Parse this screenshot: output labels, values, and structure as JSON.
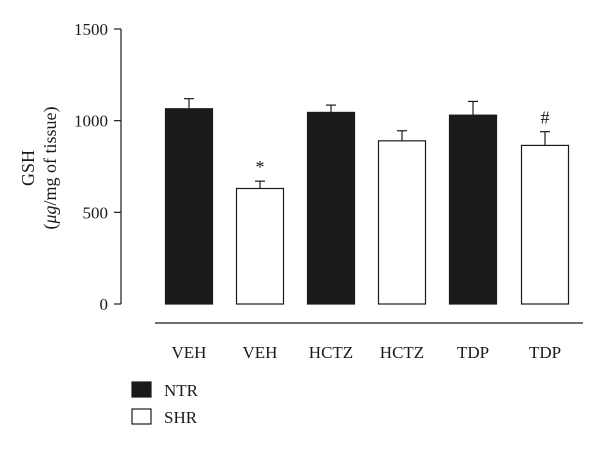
{
  "chart_data": {
    "type": "bar",
    "ylabel_line1": "GSH",
    "ylabel_line2_parts": [
      "(",
      "μg",
      "/mg of tissue)"
    ],
    "ylim": [
      0,
      1500
    ],
    "yticks": [
      0,
      500,
      1000,
      1500
    ],
    "categories": [
      "VEH",
      "VEH",
      "HCTZ",
      "HCTZ",
      "TDP",
      "TDP"
    ],
    "bars": [
      {
        "group": "NTR",
        "value": 1065,
        "error": 55,
        "annotation": ""
      },
      {
        "group": "SHR",
        "value": 630,
        "error": 40,
        "annotation": "*"
      },
      {
        "group": "NTR",
        "value": 1045,
        "error": 40,
        "annotation": ""
      },
      {
        "group": "SHR",
        "value": 890,
        "error": 55,
        "annotation": ""
      },
      {
        "group": "NTR",
        "value": 1030,
        "error": 75,
        "annotation": ""
      },
      {
        "group": "SHR",
        "value": 865,
        "error": 75,
        "annotation": "#"
      }
    ],
    "legend": [
      {
        "name": "NTR",
        "color": "#1a1a1a"
      },
      {
        "name": "SHR",
        "color": "#ffffff"
      }
    ],
    "legend_position": "bottom-left",
    "grid": false
  }
}
